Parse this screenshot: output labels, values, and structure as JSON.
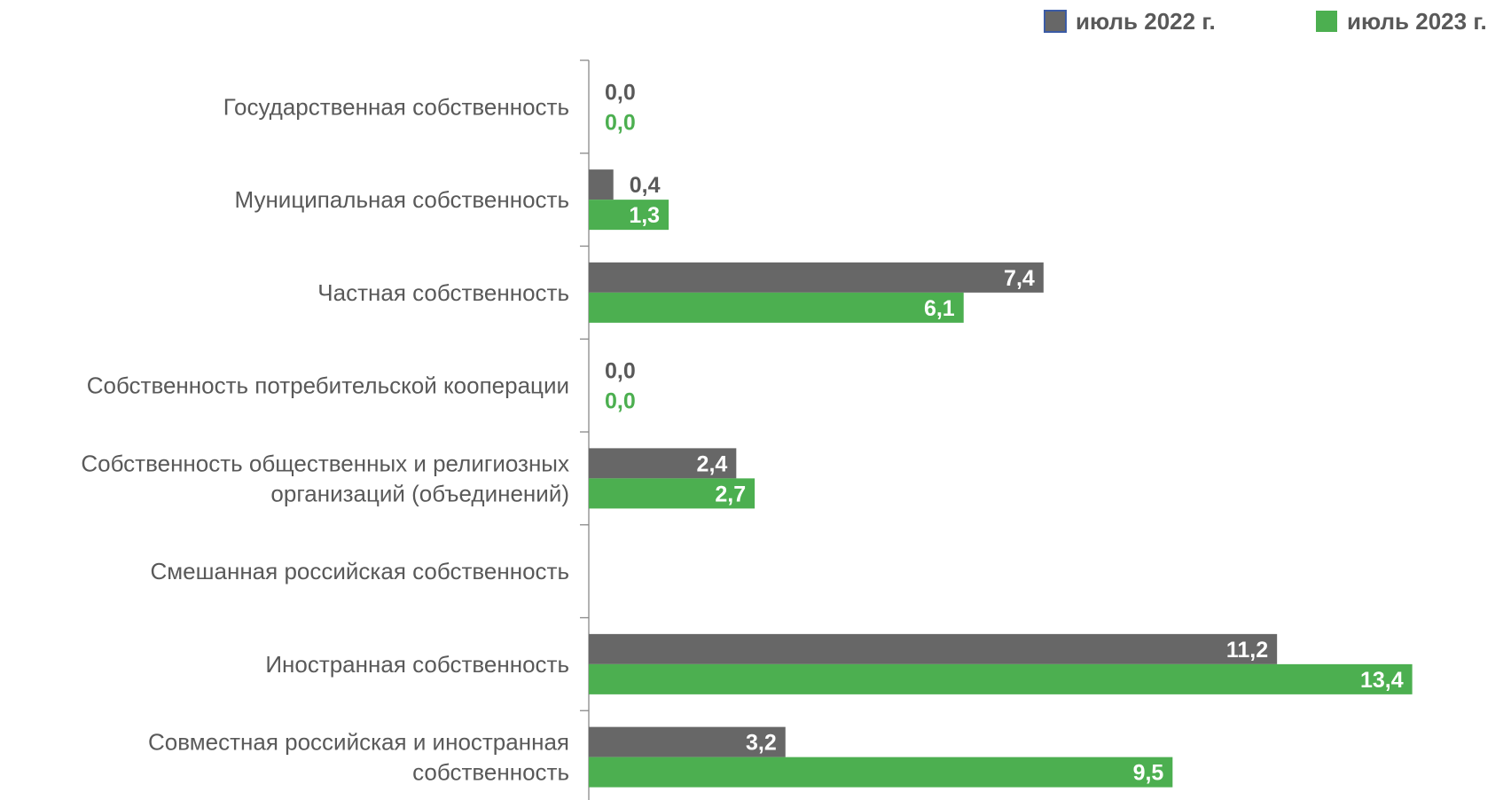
{
  "chart_data": {
    "type": "bar",
    "orientation": "horizontal",
    "title": "",
    "xlabel": "",
    "ylabel": "",
    "xlim": [
      0,
      15
    ],
    "grid": false,
    "legend_position": "top-right",
    "categories": [
      "Государственная собственность",
      "Муниципальная собственность",
      "Частная собственность",
      "Собственность потребительской кооперации",
      "Собственность общественных и религиозных организаций (объединений)",
      "Смешанная российская собственность",
      "Иностранная собственность",
      "Совместная российская и иностранная собственность"
    ],
    "category_label_lines": [
      [
        "Государственная собственность"
      ],
      [
        "Муниципальная собственность"
      ],
      [
        "Частная собственность"
      ],
      [
        "Собственность потребительской кооперации"
      ],
      [
        "Собственность общественных и религиозных",
        "организаций (объединений)"
      ],
      [
        "Смешанная российская собственность"
      ],
      [
        "Иностранная собственность"
      ],
      [
        "Совместная российская и иностранная",
        "собственность"
      ]
    ],
    "series": [
      {
        "name": "июль 2022 г.",
        "color": "#676767",
        "values": [
          0.0,
          0.4,
          7.4,
          0.0,
          2.4,
          null,
          11.2,
          3.2
        ],
        "labels": [
          "0,0",
          "0,4",
          "7,4",
          "0,0",
          "2,4",
          "",
          "11,2",
          "3,2"
        ]
      },
      {
        "name": "июль 2023 г.",
        "color": "#4caf50",
        "values": [
          0.0,
          1.3,
          6.1,
          0.0,
          2.7,
          null,
          13.4,
          9.5
        ],
        "labels": [
          "0,0",
          "1,3",
          "6,1",
          "0,0",
          "2,7",
          "",
          "13,4",
          "9,5"
        ]
      }
    ]
  }
}
